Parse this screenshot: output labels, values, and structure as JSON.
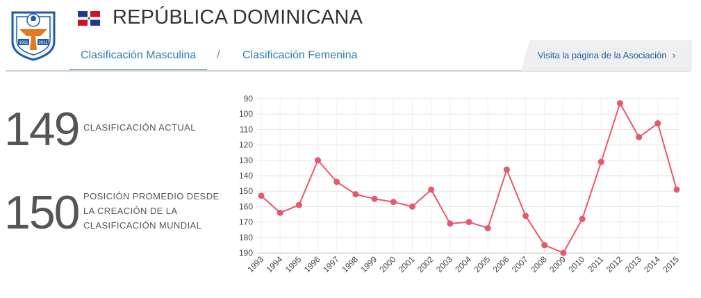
{
  "header": {
    "country_name": "REPÚBLICA DOMINICANA",
    "tabs": [
      {
        "label": "Clasificación Masculina",
        "active": true
      },
      {
        "label": "Clasificación Femenina",
        "active": false
      }
    ],
    "tab_separator": "/",
    "association_link": "Visita la página de la Asociación",
    "association_icon": "chevron-right-icon",
    "crest_text_left": "1911",
    "crest_text_right": "2011"
  },
  "colors": {
    "accent": "#1e72ba",
    "line": "#e8576b",
    "flag_blue": "#1d3a8a",
    "flag_red": "#ce1126"
  },
  "stats": [
    {
      "value": "149",
      "label": "CLASIFICACIÓN ACTUAL"
    },
    {
      "value": "150",
      "label_lines": [
        "POSICIÓN PROMEDIO DESDE",
        "LA CREACIÓN DE LA",
        "CLASIFICACIÓN MUNDIAL"
      ]
    }
  ],
  "chart_data": {
    "type": "line",
    "x": [
      "1993",
      "1994",
      "1995",
      "1996",
      "1997",
      "1998",
      "1999",
      "2000",
      "2001",
      "2002",
      "2003",
      "2004",
      "2005",
      "2006",
      "2007",
      "2008",
      "2009",
      "2010",
      "2011",
      "2012",
      "2013",
      "2014",
      "2015"
    ],
    "series": [
      {
        "values": [
          153,
          164,
          159,
          130,
          144,
          152,
          155,
          157,
          160,
          149,
          171,
          170,
          174,
          136,
          166,
          185,
          190,
          168,
          131,
          93,
          115,
          106,
          149
        ]
      }
    ],
    "y_ticks": [
      90,
      100,
      110,
      120,
      130,
      140,
      150,
      160,
      170,
      180,
      190
    ],
    "ylim": [
      90,
      190
    ],
    "y_inverted": true,
    "grid": true,
    "legend": "none"
  }
}
